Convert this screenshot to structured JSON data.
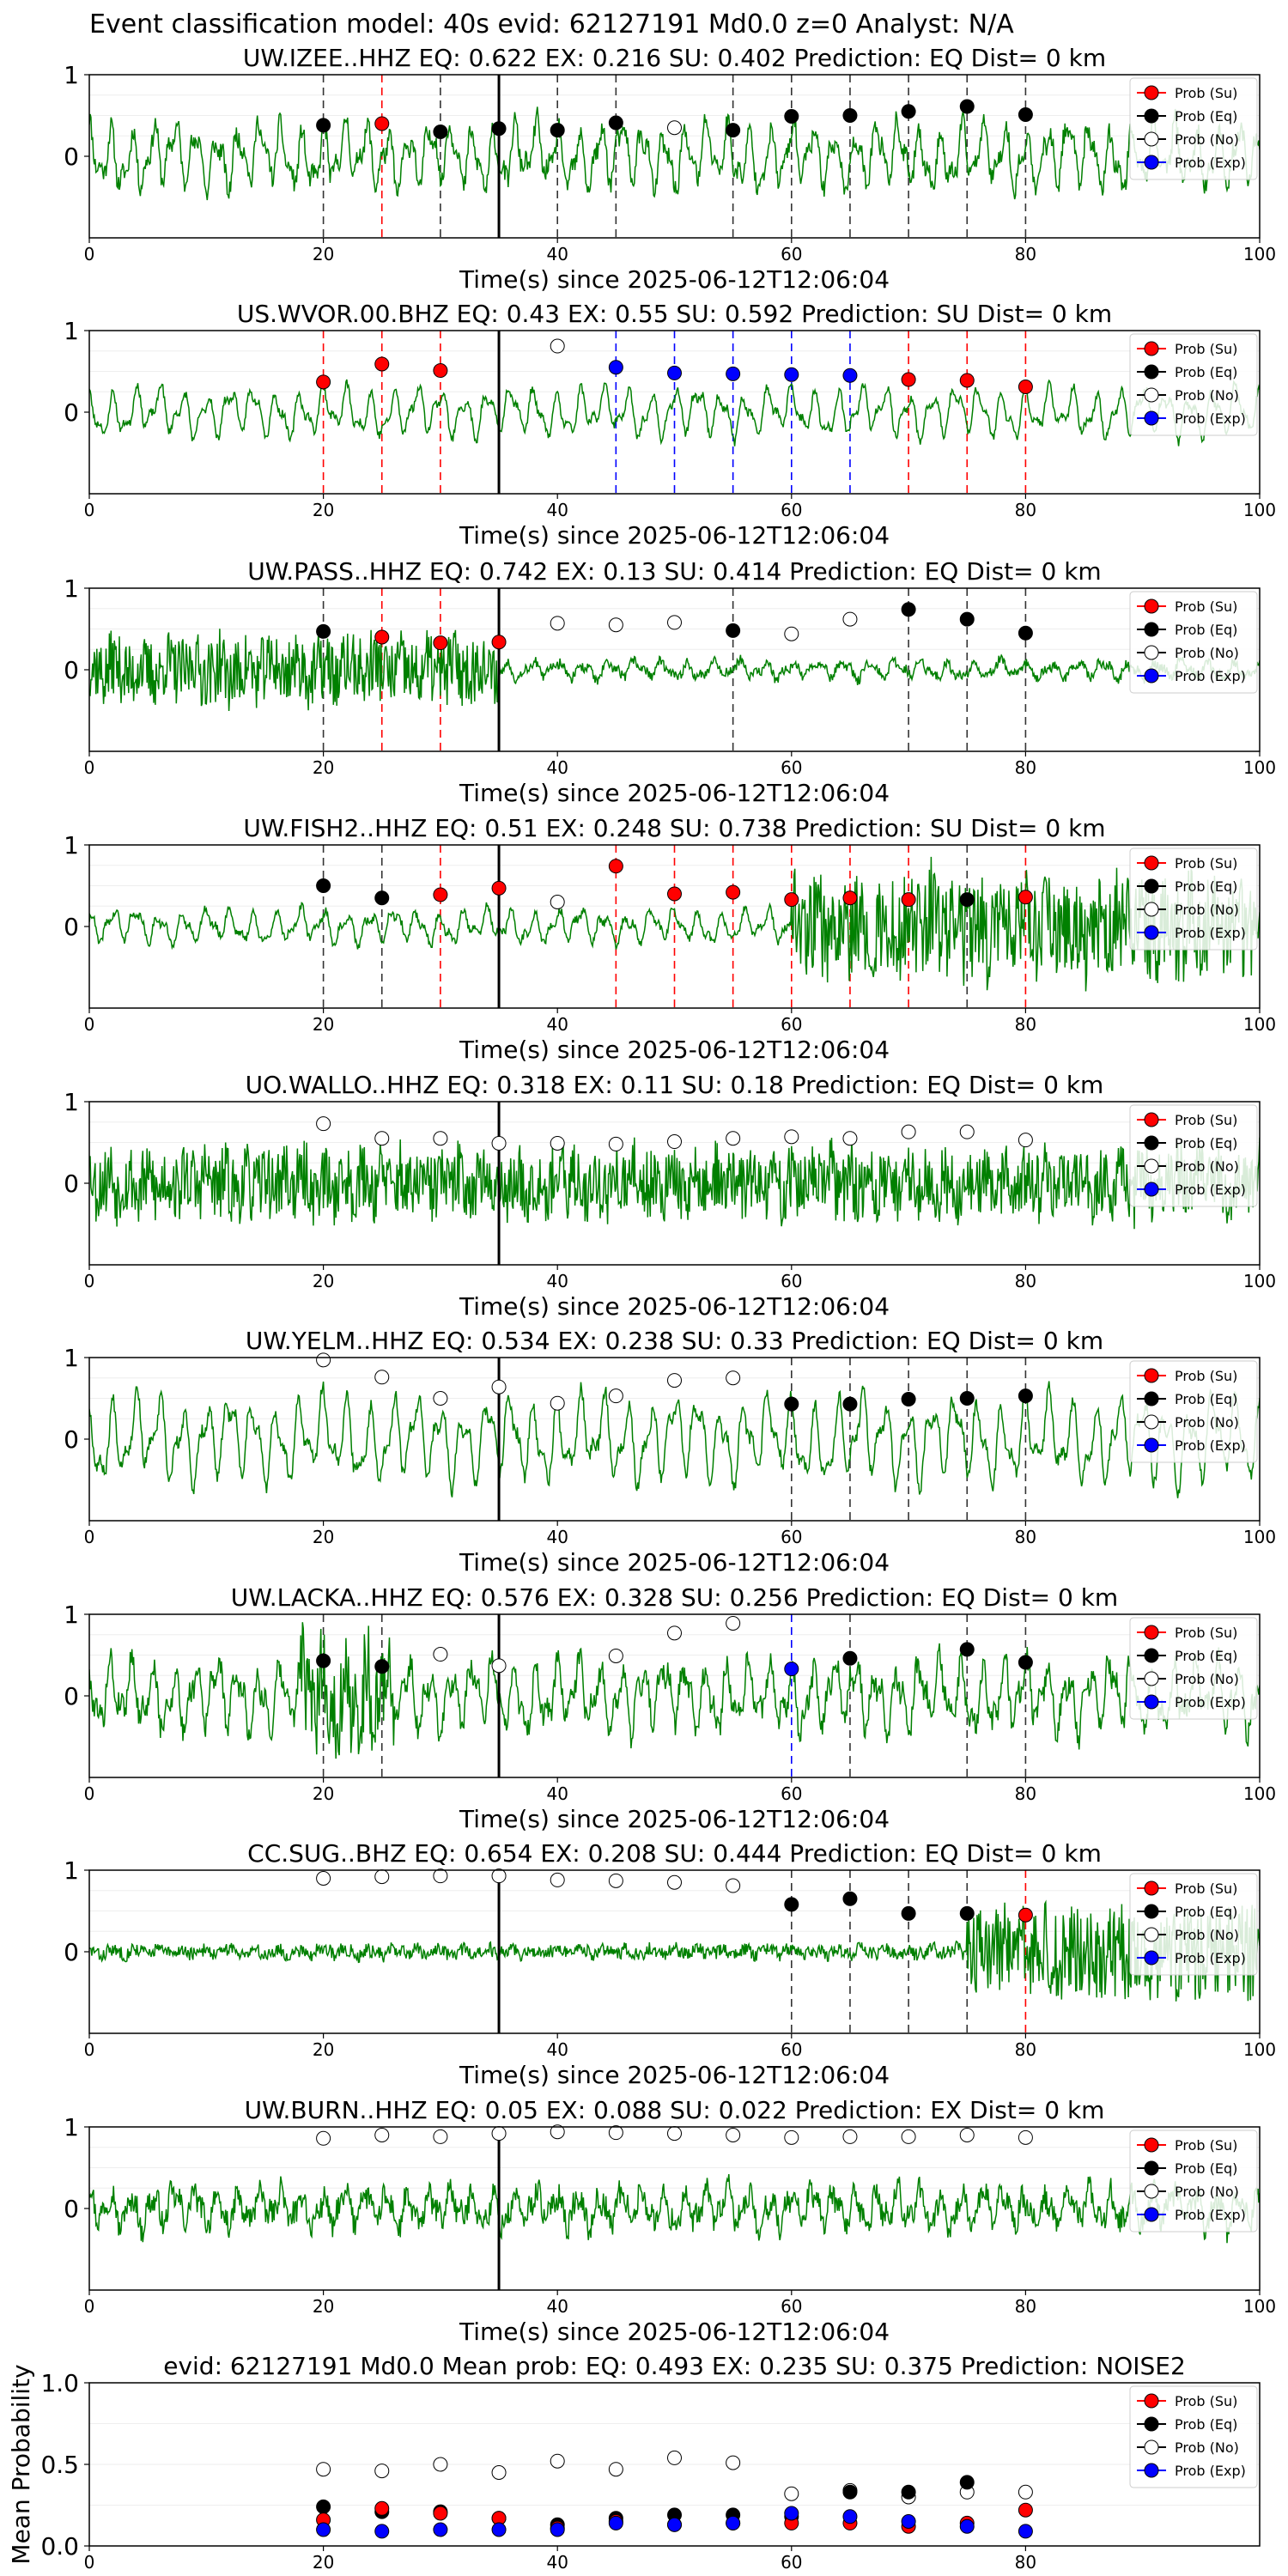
{
  "figure_title": "Event classification model: 40s evid: 62127191 Md0.0 z=0 Analyst: N/A",
  "colors": {
    "waveform": "#008000",
    "su": "#ff0000",
    "eq": "#000000",
    "no": "#ffffff",
    "exp": "#0000ff",
    "vline": "#000000"
  },
  "legend_labels": [
    "Prob (Su)",
    "Prob (Eq)",
    "Prob (No)",
    "Prob (Exp)"
  ],
  "chart_data": [
    {
      "type": "line",
      "title": "UW.IZEE..HHZ   EQ: 0.622  EX: 0.216  SU: 0.402   Prediction: EQ    Dist= 0 km",
      "xlabel": "Time(s) since 2025-06-12T12:06:04",
      "ylabel": "",
      "xlim": [
        0,
        100
      ],
      "ylim": [
        -1,
        1
      ],
      "xticks": [
        0,
        20,
        40,
        60,
        80,
        100
      ],
      "yticks": [
        0,
        1
      ],
      "vline": 35,
      "legend_items": 4,
      "seed": 11,
      "amp": 0.42,
      "noise": 0.12,
      "freq": 0.55,
      "burst": [],
      "markers": [
        {
          "x": 20,
          "y": 0.38,
          "c": "eq"
        },
        {
          "x": 25,
          "y": 0.4,
          "c": "su"
        },
        {
          "x": 30,
          "y": 0.3,
          "c": "eq"
        },
        {
          "x": 35,
          "y": 0.34,
          "c": "eq"
        },
        {
          "x": 40,
          "y": 0.32,
          "c": "eq"
        },
        {
          "x": 45,
          "y": 0.41,
          "c": "eq"
        },
        {
          "x": 50,
          "y": 0.35,
          "c": "no"
        },
        {
          "x": 55,
          "y": 0.32,
          "c": "eq"
        },
        {
          "x": 60,
          "y": 0.49,
          "c": "eq"
        },
        {
          "x": 65,
          "y": 0.5,
          "c": "eq"
        },
        {
          "x": 70,
          "y": 0.55,
          "c": "eq"
        },
        {
          "x": 75,
          "y": 0.61,
          "c": "eq"
        },
        {
          "x": 80,
          "y": 0.51,
          "c": "eq"
        }
      ]
    },
    {
      "type": "line",
      "title": "US.WVOR.00.BHZ   EQ: 0.43  EX: 0.55  SU: 0.592   Prediction: SU    Dist= 0 km",
      "xlabel": "Time(s) since 2025-06-12T12:06:04",
      "ylabel": "",
      "xlim": [
        0,
        100
      ],
      "ylim": [
        -1,
        1
      ],
      "xticks": [
        0,
        20,
        40,
        60,
        80,
        100
      ],
      "yticks": [
        0,
        1
      ],
      "vline": 35,
      "legend_items": 4,
      "seed": 23,
      "amp": 0.32,
      "noise": 0.05,
      "freq": 0.5,
      "burst": [],
      "markers": [
        {
          "x": 20,
          "y": 0.37,
          "c": "su"
        },
        {
          "x": 25,
          "y": 0.59,
          "c": "su"
        },
        {
          "x": 30,
          "y": 0.51,
          "c": "su"
        },
        {
          "x": 40,
          "y": 0.81,
          "c": "no"
        },
        {
          "x": 45,
          "y": 0.55,
          "c": "exp"
        },
        {
          "x": 50,
          "y": 0.48,
          "c": "exp"
        },
        {
          "x": 55,
          "y": 0.47,
          "c": "exp"
        },
        {
          "x": 60,
          "y": 0.46,
          "c": "exp"
        },
        {
          "x": 65,
          "y": 0.45,
          "c": "exp"
        },
        {
          "x": 70,
          "y": 0.4,
          "c": "su"
        },
        {
          "x": 75,
          "y": 0.39,
          "c": "su"
        },
        {
          "x": 80,
          "y": 0.31,
          "c": "su"
        }
      ]
    },
    {
      "type": "line",
      "title": "UW.PASS..HHZ   EQ: 0.742  EX: 0.13  SU: 0.414   Prediction: EQ    Dist= 0 km",
      "xlabel": "Time(s) since 2025-06-12T12:06:04",
      "ylabel": "",
      "xlim": [
        0,
        100
      ],
      "ylim": [
        -1,
        1
      ],
      "xticks": [
        0,
        20,
        40,
        60,
        80,
        100
      ],
      "yticks": [
        0,
        1
      ],
      "vline": 35,
      "legend_items": 4,
      "seed": 37,
      "amp": 0.12,
      "noise": 0.06,
      "freq": 0.45,
      "burst": [
        [
          0,
          35,
          0.35
        ]
      ],
      "markers": [
        {
          "x": 20,
          "y": 0.47,
          "c": "eq"
        },
        {
          "x": 25,
          "y": 0.4,
          "c": "su"
        },
        {
          "x": 30,
          "y": 0.33,
          "c": "su"
        },
        {
          "x": 35,
          "y": 0.34,
          "c": "su"
        },
        {
          "x": 40,
          "y": 0.57,
          "c": "no"
        },
        {
          "x": 45,
          "y": 0.55,
          "c": "no"
        },
        {
          "x": 50,
          "y": 0.58,
          "c": "no"
        },
        {
          "x": 55,
          "y": 0.48,
          "c": "eq"
        },
        {
          "x": 60,
          "y": 0.44,
          "c": "no"
        },
        {
          "x": 65,
          "y": 0.62,
          "c": "no"
        },
        {
          "x": 70,
          "y": 0.74,
          "c": "eq"
        },
        {
          "x": 75,
          "y": 0.62,
          "c": "eq"
        },
        {
          "x": 80,
          "y": 0.45,
          "c": "eq"
        }
      ]
    },
    {
      "type": "line",
      "title": "UW.FISH2..HHZ   EQ: 0.51  EX: 0.248  SU: 0.738   Prediction: SU    Dist= 0 km",
      "xlabel": "Time(s) since 2025-06-12T12:06:04",
      "ylabel": "",
      "xlim": [
        0,
        100
      ],
      "ylim": [
        -1,
        1
      ],
      "xticks": [
        0,
        20,
        40,
        60,
        80,
        100
      ],
      "yticks": [
        0,
        1
      ],
      "vline": 35,
      "legend_items": 4,
      "seed": 41,
      "amp": 0.22,
      "noise": 0.05,
      "freq": 0.5,
      "burst": [
        [
          60,
          100,
          0.55
        ]
      ],
      "markers": [
        {
          "x": 20,
          "y": 0.5,
          "c": "eq"
        },
        {
          "x": 25,
          "y": 0.35,
          "c": "eq"
        },
        {
          "x": 30,
          "y": 0.39,
          "c": "su"
        },
        {
          "x": 35,
          "y": 0.47,
          "c": "su"
        },
        {
          "x": 40,
          "y": 0.3,
          "c": "no"
        },
        {
          "x": 45,
          "y": 0.74,
          "c": "su"
        },
        {
          "x": 50,
          "y": 0.4,
          "c": "su"
        },
        {
          "x": 55,
          "y": 0.42,
          "c": "su"
        },
        {
          "x": 60,
          "y": 0.33,
          "c": "su"
        },
        {
          "x": 65,
          "y": 0.35,
          "c": "su"
        },
        {
          "x": 70,
          "y": 0.33,
          "c": "su"
        },
        {
          "x": 75,
          "y": 0.33,
          "c": "eq"
        },
        {
          "x": 80,
          "y": 0.36,
          "c": "su"
        }
      ]
    },
    {
      "type": "line",
      "title": "UO.WALLO..HHZ   EQ: 0.318  EX: 0.11  SU: 0.18   Prediction: EQ    Dist= 0 km",
      "xlabel": "Time(s) since 2025-06-12T12:06:04",
      "ylabel": "",
      "xlim": [
        0,
        100
      ],
      "ylim": [
        -1,
        1
      ],
      "xticks": [
        0,
        20,
        40,
        60,
        80,
        100
      ],
      "yticks": [
        0,
        1
      ],
      "vline": 35,
      "legend_items": 4,
      "seed": 53,
      "amp": 0.15,
      "noise": 0.42,
      "freq": 0.6,
      "burst": [],
      "markers": [
        {
          "x": 20,
          "y": 0.73,
          "c": "no"
        },
        {
          "x": 25,
          "y": 0.55,
          "c": "no"
        },
        {
          "x": 30,
          "y": 0.55,
          "c": "no"
        },
        {
          "x": 35,
          "y": 0.49,
          "c": "no"
        },
        {
          "x": 40,
          "y": 0.49,
          "c": "no"
        },
        {
          "x": 45,
          "y": 0.48,
          "c": "no"
        },
        {
          "x": 50,
          "y": 0.51,
          "c": "no"
        },
        {
          "x": 55,
          "y": 0.55,
          "c": "no"
        },
        {
          "x": 60,
          "y": 0.57,
          "c": "no"
        },
        {
          "x": 65,
          "y": 0.55,
          "c": "no"
        },
        {
          "x": 70,
          "y": 0.63,
          "c": "no"
        },
        {
          "x": 75,
          "y": 0.63,
          "c": "no"
        },
        {
          "x": 80,
          "y": 0.53,
          "c": "no"
        }
      ]
    },
    {
      "type": "line",
      "title": "UW.YELM..HHZ   EQ: 0.534  EX: 0.238  SU: 0.33   Prediction: EQ    Dist= 0 km",
      "xlabel": "Time(s) since 2025-06-12T12:06:04",
      "ylabel": "",
      "xlim": [
        0,
        100
      ],
      "ylim": [
        -1,
        1
      ],
      "xticks": [
        0,
        20,
        40,
        60,
        80,
        100
      ],
      "yticks": [
        0,
        1
      ],
      "vline": 35,
      "legend_items": 4,
      "seed": 67,
      "amp": 0.55,
      "noise": 0.08,
      "freq": 0.5,
      "burst": [],
      "markers": [
        {
          "x": 20,
          "y": 0.97,
          "c": "no"
        },
        {
          "x": 25,
          "y": 0.76,
          "c": "no"
        },
        {
          "x": 30,
          "y": 0.5,
          "c": "no"
        },
        {
          "x": 35,
          "y": 0.64,
          "c": "no"
        },
        {
          "x": 40,
          "y": 0.44,
          "c": "no"
        },
        {
          "x": 45,
          "y": 0.53,
          "c": "no"
        },
        {
          "x": 50,
          "y": 0.72,
          "c": "no"
        },
        {
          "x": 55,
          "y": 0.75,
          "c": "no"
        },
        {
          "x": 60,
          "y": 0.43,
          "c": "eq"
        },
        {
          "x": 65,
          "y": 0.43,
          "c": "eq"
        },
        {
          "x": 70,
          "y": 0.49,
          "c": "eq"
        },
        {
          "x": 75,
          "y": 0.5,
          "c": "eq"
        },
        {
          "x": 80,
          "y": 0.53,
          "c": "eq"
        }
      ]
    },
    {
      "type": "line",
      "title": "UW.LACKA..HHZ   EQ: 0.576  EX: 0.328  SU: 0.256   Prediction: EQ    Dist= 0 km",
      "xlabel": "Time(s) since 2025-06-12T12:06:04",
      "ylabel": "",
      "xlim": [
        0,
        100
      ],
      "ylim": [
        -1,
        1
      ],
      "xticks": [
        0,
        20,
        40,
        60,
        80,
        100
      ],
      "yticks": [
        0,
        1
      ],
      "vline": 35,
      "legend_items": 4,
      "seed": 79,
      "amp": 0.45,
      "noise": 0.15,
      "freq": 0.55,
      "burst": [
        [
          18,
          26,
          0.4
        ]
      ],
      "markers": [
        {
          "x": 20,
          "y": 0.43,
          "c": "eq"
        },
        {
          "x": 25,
          "y": 0.36,
          "c": "eq"
        },
        {
          "x": 30,
          "y": 0.51,
          "c": "no"
        },
        {
          "x": 35,
          "y": 0.37,
          "c": "no"
        },
        {
          "x": 45,
          "y": 0.49,
          "c": "no"
        },
        {
          "x": 50,
          "y": 0.77,
          "c": "no"
        },
        {
          "x": 55,
          "y": 0.89,
          "c": "no"
        },
        {
          "x": 60,
          "y": 0.33,
          "c": "exp"
        },
        {
          "x": 65,
          "y": 0.46,
          "c": "eq"
        },
        {
          "x": 75,
          "y": 0.57,
          "c": "eq"
        },
        {
          "x": 80,
          "y": 0.41,
          "c": "eq"
        }
      ]
    },
    {
      "type": "line",
      "title": "CC.SUG..BHZ   EQ: 0.654  EX: 0.208  SU: 0.444   Prediction: EQ    Dist= 0 km",
      "xlabel": "Time(s) since 2025-06-12T12:06:04",
      "ylabel": "",
      "xlim": [
        0,
        100
      ],
      "ylim": [
        -1,
        1
      ],
      "xticks": [
        0,
        20,
        40,
        60,
        80,
        100
      ],
      "yticks": [
        0,
        1
      ],
      "vline": 35,
      "legend_items": 4,
      "seed": 83,
      "amp": 0.05,
      "noise": 0.08,
      "freq": 0.5,
      "burst": [
        [
          75,
          100,
          0.5
        ]
      ],
      "markers": [
        {
          "x": 20,
          "y": 0.9,
          "c": "no"
        },
        {
          "x": 25,
          "y": 0.92,
          "c": "no"
        },
        {
          "x": 30,
          "y": 0.93,
          "c": "no"
        },
        {
          "x": 35,
          "y": 0.93,
          "c": "no"
        },
        {
          "x": 40,
          "y": 0.88,
          "c": "no"
        },
        {
          "x": 45,
          "y": 0.87,
          "c": "no"
        },
        {
          "x": 50,
          "y": 0.85,
          "c": "no"
        },
        {
          "x": 55,
          "y": 0.81,
          "c": "no"
        },
        {
          "x": 60,
          "y": 0.58,
          "c": "eq"
        },
        {
          "x": 65,
          "y": 0.65,
          "c": "eq"
        },
        {
          "x": 70,
          "y": 0.47,
          "c": "eq"
        },
        {
          "x": 75,
          "y": 0.47,
          "c": "eq"
        },
        {
          "x": 80,
          "y": 0.45,
          "c": "su"
        }
      ]
    },
    {
      "type": "line",
      "title": "UW.BURN..HHZ   EQ: 0.05  EX: 0.088  SU: 0.022   Prediction: EX    Dist= 0 km",
      "xlabel": "Time(s) since 2025-06-12T12:06:04",
      "ylabel": "",
      "xlim": [
        0,
        100
      ],
      "ylim": [
        -1,
        1
      ],
      "xticks": [
        0,
        20,
        40,
        60,
        80,
        100
      ],
      "yticks": [
        0,
        1
      ],
      "vline": 35,
      "legend_items": 4,
      "seed": 97,
      "amp": 0.25,
      "noise": 0.15,
      "freq": 0.55,
      "burst": [],
      "markers": [
        {
          "x": 20,
          "y": 0.86,
          "c": "no"
        },
        {
          "x": 25,
          "y": 0.9,
          "c": "no"
        },
        {
          "x": 30,
          "y": 0.88,
          "c": "no"
        },
        {
          "x": 35,
          "y": 0.92,
          "c": "no"
        },
        {
          "x": 40,
          "y": 0.94,
          "c": "no"
        },
        {
          "x": 45,
          "y": 0.93,
          "c": "no"
        },
        {
          "x": 50,
          "y": 0.92,
          "c": "no"
        },
        {
          "x": 55,
          "y": 0.9,
          "c": "no"
        },
        {
          "x": 60,
          "y": 0.87,
          "c": "no"
        },
        {
          "x": 65,
          "y": 0.88,
          "c": "no"
        },
        {
          "x": 70,
          "y": 0.88,
          "c": "no"
        },
        {
          "x": 75,
          "y": 0.9,
          "c": "no"
        },
        {
          "x": 80,
          "y": 0.87,
          "c": "no"
        }
      ]
    },
    {
      "type": "scatter",
      "title": "evid: 62127191  Md0.0   Mean prob:    EQ: 0.493  EX: 0.235  SU: 0.375   Prediction: NOISE2",
      "xlabel": "",
      "ylabel": "Mean Probability",
      "xlim": [
        0,
        100
      ],
      "ylim": [
        0,
        1
      ],
      "xticks": [
        0,
        20,
        40,
        60,
        80
      ],
      "yticks": [
        0,
        0.5,
        1
      ],
      "ytick_labels": [
        "0.0",
        "0.5",
        "1.0"
      ],
      "legend_items": 4,
      "x": [
        20,
        25,
        30,
        35,
        40,
        45,
        50,
        55,
        60,
        65,
        70,
        75,
        80
      ],
      "series": [
        {
          "name": "Prob (No)",
          "c": "no",
          "values": [
            0.47,
            0.46,
            0.5,
            0.45,
            0.52,
            0.47,
            0.54,
            0.51,
            0.32,
            0.34,
            0.3,
            0.33,
            0.33
          ]
        },
        {
          "name": "Prob (Eq)",
          "c": "eq",
          "values": [
            0.24,
            0.21,
            0.21,
            0.17,
            0.13,
            0.17,
            0.19,
            0.19,
            0.18,
            0.33,
            0.33,
            0.39,
            null
          ]
        },
        {
          "name": "Prob (Su)",
          "c": "su",
          "values": [
            0.16,
            0.23,
            0.2,
            0.17,
            0.11,
            0.15,
            0.13,
            0.14,
            0.14,
            0.14,
            0.12,
            0.14,
            0.22
          ]
        },
        {
          "name": "Prob (Exp)",
          "c": "exp",
          "values": [
            0.1,
            0.09,
            0.1,
            0.1,
            0.1,
            0.14,
            0.13,
            0.14,
            0.2,
            0.18,
            0.15,
            0.12,
            0.09
          ]
        }
      ]
    }
  ]
}
